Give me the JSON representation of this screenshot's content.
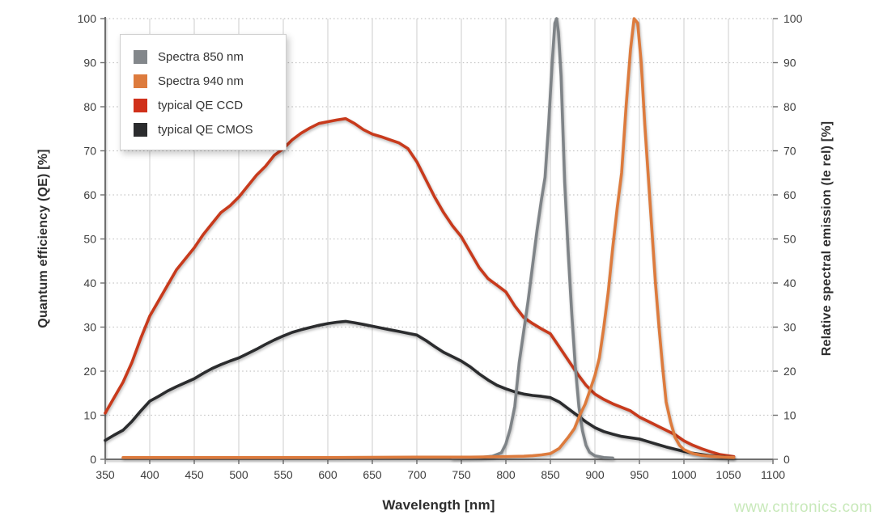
{
  "page": {
    "watermark": "www.cntronics.com",
    "watermark_color": "#c8e9ba",
    "background": "#ffffff"
  },
  "chart_data": {
    "type": "line",
    "title": "",
    "xlabel": "Wavelength [nm]",
    "ylabel_left": "Quantum efficiency (QE) [%]",
    "ylabel_right": "Relative spectral emission (Ie rel) [%]",
    "xlim": [
      350,
      1100
    ],
    "ylim": [
      0,
      100
    ],
    "x_ticks": [
      350,
      400,
      450,
      500,
      550,
      600,
      650,
      700,
      750,
      800,
      850,
      900,
      950,
      1000,
      1050,
      1100
    ],
    "y_ticks": [
      0,
      10,
      20,
      30,
      40,
      50,
      60,
      70,
      80,
      90,
      100
    ],
    "grid": {
      "vertical": "solid",
      "horizontal": "dotted",
      "vertical_color": "#d9d9d9",
      "horizontal_color": "#c4c4c4",
      "axis_color": "#6f6f6f"
    },
    "legend": {
      "position": "top-left",
      "items": [
        {
          "label": "Spectra 850 nm",
          "color": "#83878b"
        },
        {
          "label": "Spectra 940 nm",
          "color": "#dd7b3d"
        },
        {
          "label": "typical QE CCD",
          "color": "#d0301a"
        },
        {
          "label": "typical QE CMOS",
          "color": "#2b2c2e"
        }
      ]
    },
    "draw_order": [
      2,
      3,
      0,
      1
    ],
    "series": [
      {
        "name": "Spectra 850 nm",
        "color": "#7f8488",
        "points": [
          [
            740,
            0.3
          ],
          [
            770,
            0.4
          ],
          [
            785,
            0.7
          ],
          [
            795,
            1.5
          ],
          [
            800,
            3.5
          ],
          [
            805,
            7
          ],
          [
            810,
            12
          ],
          [
            815,
            22
          ],
          [
            820,
            29
          ],
          [
            825,
            36
          ],
          [
            830,
            44
          ],
          [
            835,
            52
          ],
          [
            840,
            59
          ],
          [
            844,
            64
          ],
          [
            848,
            76
          ],
          [
            852,
            90
          ],
          [
            855,
            99
          ],
          [
            857,
            100
          ],
          [
            859,
            97
          ],
          [
            862,
            87
          ],
          [
            866,
            63
          ],
          [
            870,
            47
          ],
          [
            874,
            33
          ],
          [
            878,
            21
          ],
          [
            882,
            12
          ],
          [
            886,
            6.5
          ],
          [
            890,
            3.2
          ],
          [
            894,
            1.6
          ],
          [
            900,
            0.8
          ],
          [
            910,
            0.4
          ],
          [
            920,
            0.3
          ]
        ]
      },
      {
        "name": "Spectra 940 nm",
        "color": "#dd7b3d",
        "points": [
          [
            370,
            0.4
          ],
          [
            420,
            0.4
          ],
          [
            500,
            0.4
          ],
          [
            600,
            0.4
          ],
          [
            700,
            0.5
          ],
          [
            760,
            0.5
          ],
          [
            800,
            0.6
          ],
          [
            820,
            0.7
          ],
          [
            830,
            0.8
          ],
          [
            840,
            1
          ],
          [
            850,
            1.3
          ],
          [
            860,
            2.5
          ],
          [
            870,
            5
          ],
          [
            877,
            7
          ],
          [
            883,
            10
          ],
          [
            889,
            12.5
          ],
          [
            895,
            16
          ],
          [
            900,
            19
          ],
          [
            905,
            23
          ],
          [
            910,
            30
          ],
          [
            915,
            38
          ],
          [
            920,
            48
          ],
          [
            925,
            57
          ],
          [
            930,
            65
          ],
          [
            935,
            80
          ],
          [
            940,
            93
          ],
          [
            944,
            100
          ],
          [
            948,
            99
          ],
          [
            952,
            90
          ],
          [
            956,
            76
          ],
          [
            960,
            64
          ],
          [
            964,
            52
          ],
          [
            968,
            40
          ],
          [
            972,
            30
          ],
          [
            976,
            21
          ],
          [
            980,
            13
          ],
          [
            985,
            8.5
          ],
          [
            990,
            5
          ],
          [
            995,
            3.2
          ],
          [
            1000,
            2.2
          ],
          [
            1010,
            1.3
          ],
          [
            1020,
            0.9
          ],
          [
            1030,
            0.7
          ],
          [
            1045,
            0.5
          ],
          [
            1056,
            0.4
          ]
        ]
      },
      {
        "name": "typical QE CCD",
        "color": "#c83a1c",
        "points": [
          [
            350,
            10.5
          ],
          [
            360,
            14
          ],
          [
            370,
            17.5
          ],
          [
            380,
            22
          ],
          [
            390,
            27.5
          ],
          [
            400,
            32.5
          ],
          [
            410,
            36
          ],
          [
            420,
            39.5
          ],
          [
            430,
            43
          ],
          [
            440,
            45.5
          ],
          [
            450,
            48
          ],
          [
            460,
            51
          ],
          [
            470,
            53.5
          ],
          [
            480,
            56
          ],
          [
            490,
            57.5
          ],
          [
            500,
            59.5
          ],
          [
            510,
            62
          ],
          [
            520,
            64.5
          ],
          [
            530,
            66.5
          ],
          [
            540,
            69
          ],
          [
            550,
            70.5
          ],
          [
            560,
            72.5
          ],
          [
            570,
            74
          ],
          [
            580,
            75.2
          ],
          [
            590,
            76.2
          ],
          [
            600,
            76.6
          ],
          [
            610,
            77
          ],
          [
            620,
            77.3
          ],
          [
            630,
            76.2
          ],
          [
            640,
            74.8
          ],
          [
            650,
            73.8
          ],
          [
            660,
            73.2
          ],
          [
            670,
            72.5
          ],
          [
            680,
            71.8
          ],
          [
            690,
            70.5
          ],
          [
            700,
            67.5
          ],
          [
            710,
            63.5
          ],
          [
            720,
            59.5
          ],
          [
            730,
            56
          ],
          [
            740,
            53
          ],
          [
            750,
            50.5
          ],
          [
            760,
            47
          ],
          [
            770,
            43.5
          ],
          [
            780,
            41
          ],
          [
            790,
            39.5
          ],
          [
            800,
            38
          ],
          [
            810,
            34.8
          ],
          [
            820,
            32.2
          ],
          [
            830,
            30.8
          ],
          [
            840,
            29.6
          ],
          [
            850,
            28.5
          ],
          [
            860,
            25.5
          ],
          [
            870,
            22.5
          ],
          [
            880,
            19.5
          ],
          [
            890,
            16.8
          ],
          [
            900,
            14.8
          ],
          [
            910,
            13.6
          ],
          [
            920,
            12.6
          ],
          [
            930,
            11.8
          ],
          [
            940,
            11
          ],
          [
            950,
            9.6
          ],
          [
            960,
            8.6
          ],
          [
            970,
            7.6
          ],
          [
            980,
            6.6
          ],
          [
            990,
            5.6
          ],
          [
            1000,
            4.2
          ],
          [
            1010,
            3.2
          ],
          [
            1020,
            2.4
          ],
          [
            1030,
            1.7
          ],
          [
            1040,
            1.1
          ],
          [
            1050,
            0.8
          ],
          [
            1056,
            0.6
          ]
        ]
      },
      {
        "name": "typical QE CMOS",
        "color": "#2b2c2e",
        "points": [
          [
            350,
            4.3
          ],
          [
            360,
            5.5
          ],
          [
            370,
            6.6
          ],
          [
            380,
            8.6
          ],
          [
            390,
            11
          ],
          [
            400,
            13.2
          ],
          [
            410,
            14.3
          ],
          [
            420,
            15.5
          ],
          [
            430,
            16.5
          ],
          [
            440,
            17.4
          ],
          [
            450,
            18.3
          ],
          [
            460,
            19.5
          ],
          [
            470,
            20.6
          ],
          [
            480,
            21.5
          ],
          [
            490,
            22.3
          ],
          [
            500,
            23
          ],
          [
            510,
            24
          ],
          [
            520,
            25
          ],
          [
            530,
            26.1
          ],
          [
            540,
            27.1
          ],
          [
            550,
            28
          ],
          [
            560,
            28.8
          ],
          [
            570,
            29.4
          ],
          [
            580,
            29.9
          ],
          [
            590,
            30.4
          ],
          [
            600,
            30.8
          ],
          [
            610,
            31.1
          ],
          [
            620,
            31.3
          ],
          [
            630,
            31
          ],
          [
            640,
            30.6
          ],
          [
            650,
            30.2
          ],
          [
            660,
            29.8
          ],
          [
            670,
            29.4
          ],
          [
            680,
            29
          ],
          [
            690,
            28.6
          ],
          [
            700,
            28.2
          ],
          [
            710,
            27
          ],
          [
            720,
            25.6
          ],
          [
            730,
            24.3
          ],
          [
            740,
            23.3
          ],
          [
            750,
            22.3
          ],
          [
            760,
            21
          ],
          [
            770,
            19.4
          ],
          [
            780,
            18
          ],
          [
            790,
            16.8
          ],
          [
            800,
            16
          ],
          [
            810,
            15.3
          ],
          [
            820,
            14.8
          ],
          [
            830,
            14.5
          ],
          [
            840,
            14.3
          ],
          [
            850,
            14
          ],
          [
            860,
            13
          ],
          [
            870,
            11.5
          ],
          [
            880,
            10
          ],
          [
            890,
            8.5
          ],
          [
            900,
            7.2
          ],
          [
            910,
            6.3
          ],
          [
            920,
            5.7
          ],
          [
            930,
            5.2
          ],
          [
            940,
            4.9
          ],
          [
            950,
            4.6
          ],
          [
            960,
            4
          ],
          [
            970,
            3.4
          ],
          [
            980,
            2.8
          ],
          [
            990,
            2.3
          ],
          [
            1000,
            1.8
          ],
          [
            1010,
            1.4
          ],
          [
            1020,
            1.1
          ],
          [
            1030,
            0.8
          ],
          [
            1040,
            0.6
          ],
          [
            1055,
            0.4
          ]
        ]
      }
    ]
  }
}
